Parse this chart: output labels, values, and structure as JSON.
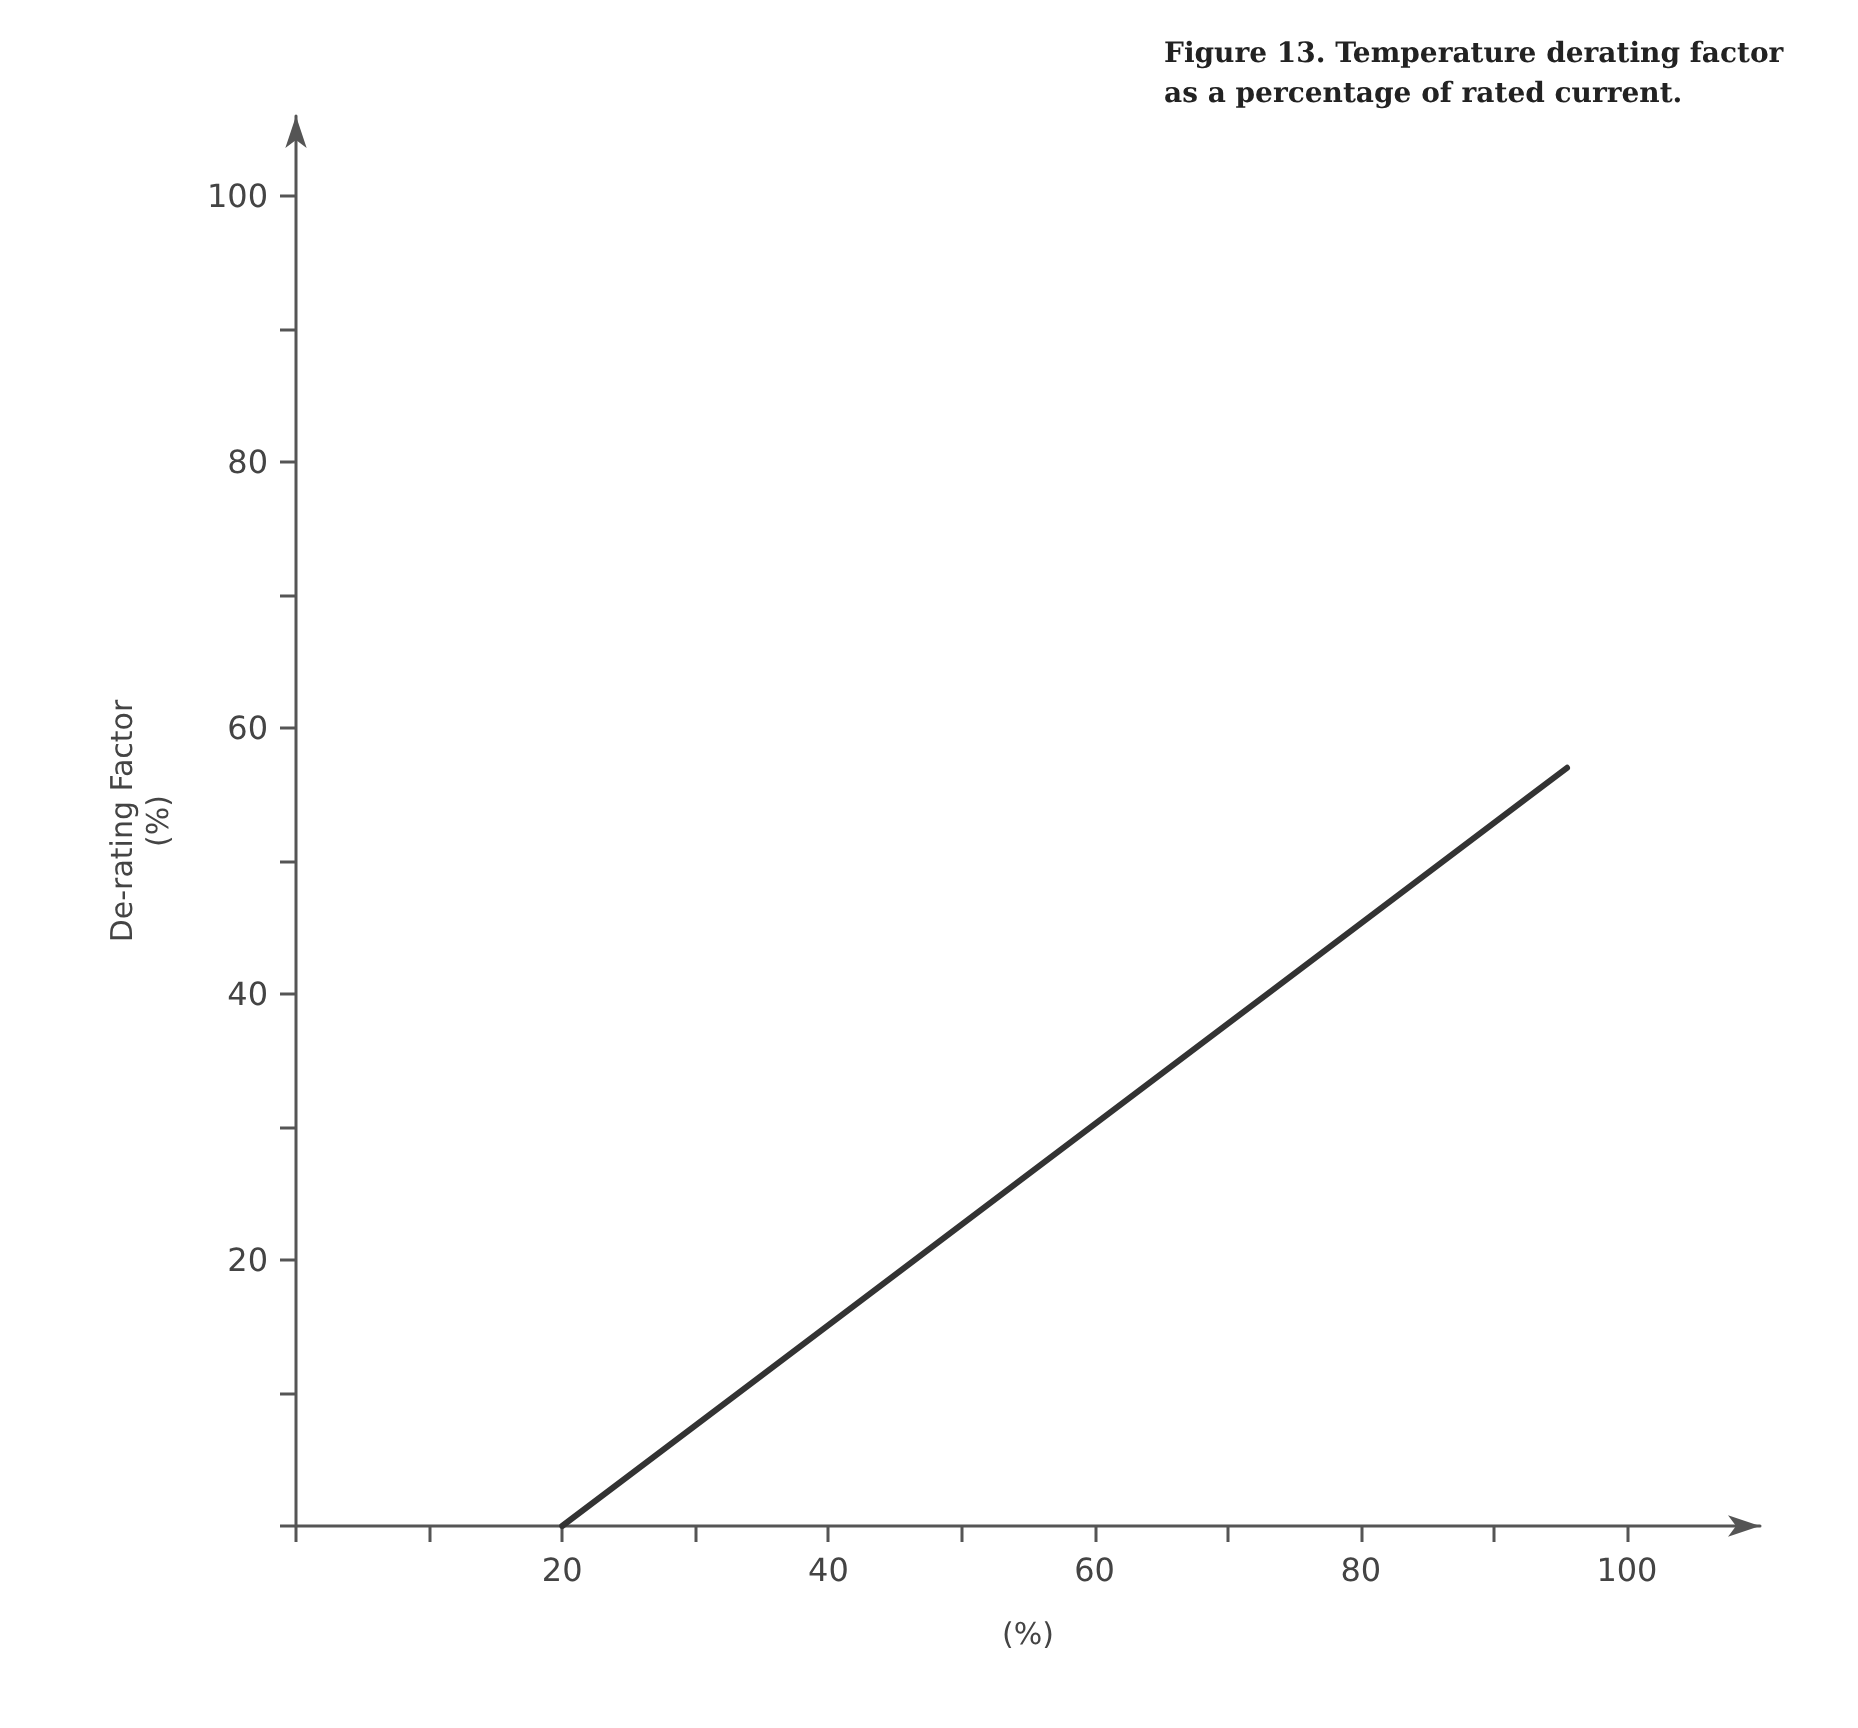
{
  "chart_data": {
    "type": "line",
    "title": "Figure 13. Temperature derating factor as a percentage of rated current.",
    "xlabel": "(%)",
    "ylabel": "De-rating Factor\n(%)",
    "x": [
      20,
      95.5
    ],
    "series": [
      {
        "color": "#333333",
        "values": [
          0,
          57
        ]
      }
    ],
    "xlim": [
      0,
      110
    ],
    "ylim": [
      0,
      106
    ],
    "xticks": [
      {
        "value": 0,
        "label": null
      },
      {
        "value": 10,
        "label": null
      },
      20,
      {
        "value": 30,
        "label": null
      },
      40,
      {
        "value": 50,
        "label": null
      },
      60,
      {
        "value": 70,
        "label": null
      },
      80,
      {
        "value": 90,
        "label": null
      },
      100
    ],
    "yticks": [
      {
        "value": 0,
        "label": null
      },
      {
        "value": 10,
        "label": null
      },
      20,
      {
        "value": 30,
        "label": null
      },
      40,
      {
        "value": 50,
        "label": null
      },
      60,
      {
        "value": 70,
        "label": null
      },
      80,
      {
        "value": 90,
        "label": null
      },
      100
    ],
    "grid": false,
    "marker": "none",
    "line_style": "solid"
  }
}
